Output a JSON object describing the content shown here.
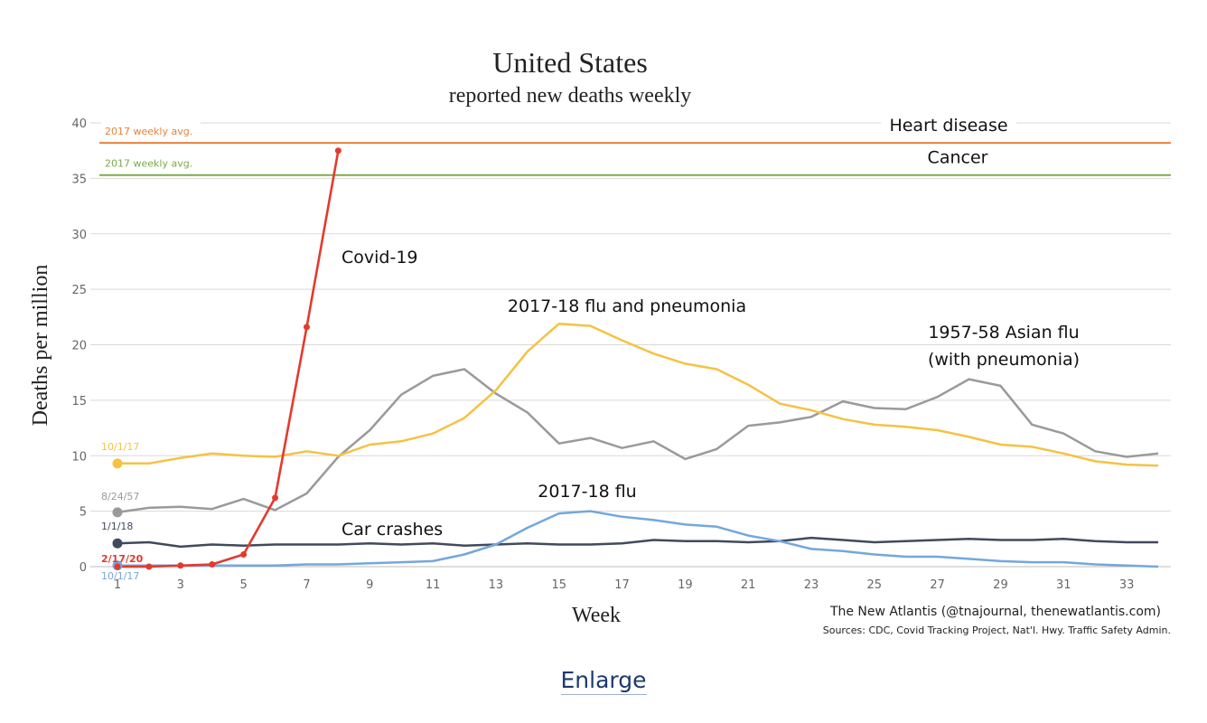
{
  "chart_data": {
    "type": "line",
    "title": "United States",
    "subtitle": "reported new deaths weekly",
    "xlabel": "Week",
    "ylabel": "Deaths per million",
    "xlim": [
      1,
      34
    ],
    "ylim": [
      0,
      40
    ],
    "x_ticks": [
      1,
      3,
      5,
      7,
      9,
      11,
      13,
      15,
      17,
      19,
      21,
      23,
      25,
      27,
      29,
      31,
      33
    ],
    "y_ticks": [
      0,
      5,
      10,
      15,
      20,
      25,
      30,
      35,
      40
    ],
    "grid": true,
    "legend": "none",
    "reference_lines": [
      {
        "name": "Heart disease",
        "value": 38.2,
        "note": "2017 weekly avg.",
        "color": "#e8823a"
      },
      {
        "name": "Cancer",
        "value": 35.3,
        "note": "2017 weekly avg.",
        "color": "#7aab4a"
      }
    ],
    "series": [
      {
        "name": "1957-58 Asian flu (with pneumonia)",
        "start_label": "8/24/57",
        "color": "#9a9a9a",
        "x": [
          1,
          2,
          3,
          4,
          5,
          6,
          7,
          8,
          9,
          10,
          11,
          12,
          13,
          14,
          15,
          16,
          17,
          18,
          19,
          20,
          21,
          22,
          23,
          24,
          25,
          26,
          27,
          28,
          29,
          30,
          31,
          32,
          33,
          34
        ],
        "values": [
          4.9,
          5.3,
          5.4,
          5.2,
          6.1,
          5.1,
          6.6,
          9.9,
          12.3,
          15.5,
          17.2,
          17.8,
          15.6,
          13.9,
          11.1,
          11.6,
          10.7,
          11.3,
          9.7,
          10.6,
          12.7,
          13.0,
          13.5,
          14.9,
          14.3,
          14.2,
          15.3,
          16.9,
          16.3,
          12.8,
          12.0,
          10.4,
          9.9,
          10.2
        ]
      },
      {
        "name": "2017-18 flu and pneumonia",
        "start_label": "10/1/17",
        "color": "#f5c243",
        "x": [
          1,
          2,
          3,
          4,
          5,
          6,
          7,
          8,
          9,
          10,
          11,
          12,
          13,
          14,
          15,
          16,
          17,
          18,
          19,
          20,
          21,
          22,
          23,
          24,
          25,
          26,
          27,
          28,
          29,
          30,
          31,
          32,
          33,
          34
        ],
        "values": [
          9.3,
          9.3,
          9.8,
          10.2,
          10.0,
          9.9,
          10.4,
          10.0,
          11.0,
          11.3,
          12.0,
          13.4,
          15.9,
          19.4,
          21.9,
          21.7,
          20.4,
          19.2,
          18.3,
          17.8,
          16.4,
          14.7,
          14.1,
          13.3,
          12.8,
          12.6,
          12.3,
          11.7,
          11.0,
          10.8,
          10.2,
          9.5,
          9.2,
          9.1
        ]
      },
      {
        "name": "Car crashes",
        "start_label": "1/1/18",
        "color": "#414a5c",
        "x": [
          1,
          2,
          3,
          4,
          5,
          6,
          7,
          8,
          9,
          10,
          11,
          12,
          13,
          14,
          15,
          16,
          17,
          18,
          19,
          20,
          21,
          22,
          23,
          24,
          25,
          26,
          27,
          28,
          29,
          30,
          31,
          32,
          33,
          34
        ],
        "values": [
          2.1,
          2.2,
          1.8,
          2.0,
          1.9,
          2.0,
          2.0,
          2.0,
          2.1,
          2.0,
          2.1,
          1.9,
          2.0,
          2.1,
          2.0,
          2.0,
          2.1,
          2.4,
          2.3,
          2.3,
          2.2,
          2.3,
          2.6,
          2.4,
          2.2,
          2.3,
          2.4,
          2.5,
          2.4,
          2.4,
          2.5,
          2.3,
          2.2,
          2.2
        ]
      },
      {
        "name": "2017-18 flu",
        "start_label": "10/1/17",
        "color": "#74a7dc",
        "x": [
          1,
          2,
          3,
          4,
          5,
          6,
          7,
          8,
          9,
          10,
          11,
          12,
          13,
          14,
          15,
          16,
          17,
          18,
          19,
          20,
          21,
          22,
          23,
          24,
          25,
          26,
          27,
          28,
          29,
          30,
          31,
          32,
          33,
          34
        ],
        "values": [
          0.1,
          0.1,
          0.1,
          0.1,
          0.1,
          0.1,
          0.2,
          0.2,
          0.3,
          0.4,
          0.5,
          1.1,
          2.0,
          3.5,
          4.8,
          5.0,
          4.5,
          4.2,
          3.8,
          3.6,
          2.8,
          2.3,
          1.6,
          1.4,
          1.1,
          0.9,
          0.9,
          0.7,
          0.5,
          0.4,
          0.4,
          0.2,
          0.1,
          0.0
        ]
      },
      {
        "name": "Covid-19",
        "start_label": "2/17/20",
        "color": "#e33a2e",
        "x": [
          1,
          2,
          3,
          4,
          5,
          6,
          7,
          8
        ],
        "values": [
          0.0,
          0.0,
          0.1,
          0.2,
          1.1,
          6.2,
          21.6,
          37.5
        ]
      }
    ],
    "source_credit": "The New Atlantis (@tnajournal, thenewatlantis.com)",
    "sources": "Sources: CDC, Covid Tracking Project, Nat'l. Hwy. Traffic Safety Admin."
  },
  "link": {
    "enlarge": "Enlarge"
  }
}
